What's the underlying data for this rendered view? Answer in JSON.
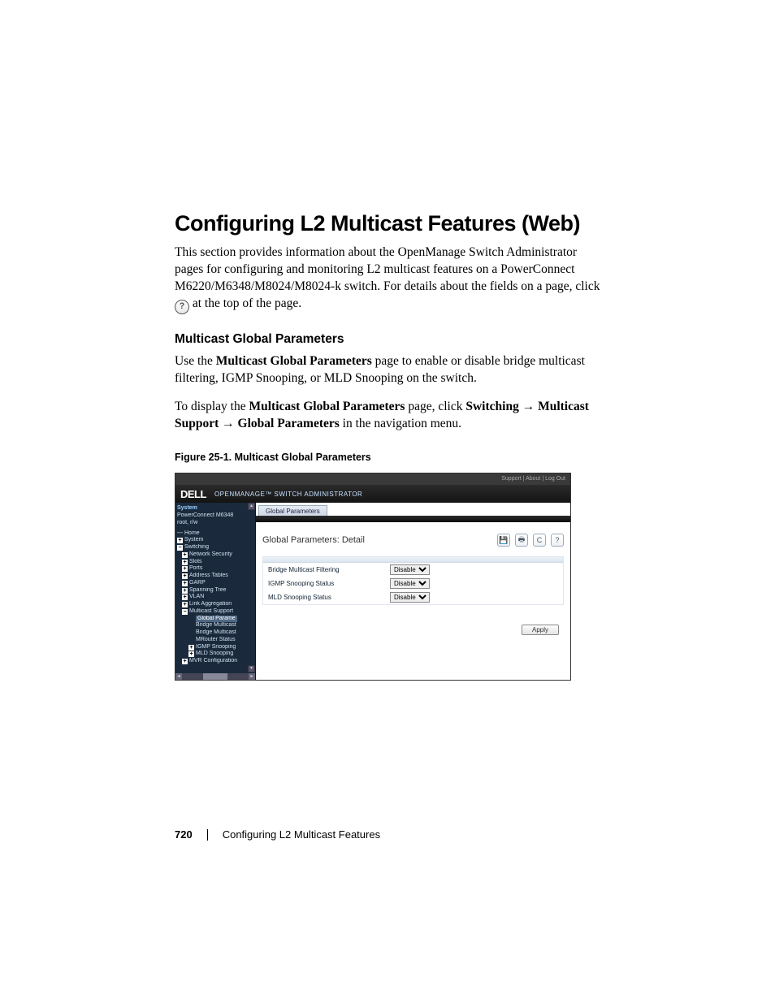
{
  "page": {
    "heading": "Configuring L2 Multicast Features (Web)",
    "intro_a": "This section provides information about the OpenManage Switch Administrator pages for configuring and monitoring L2 multicast features on a PowerConnect M6220/M6348/M8024/M8024-k switch. For details about the fields on a page, click ",
    "intro_b": " at the top of the page.",
    "sub_heading": "Multicast Global Parameters",
    "para2_a": "Use the ",
    "para2_bold": "Multicast Global Parameters",
    "para2_b": " page to enable or disable bridge multicast filtering, IGMP Snooping, or MLD Snooping on the switch.",
    "para3_a": "To display the ",
    "para3_bold1": "Multicast Global Parameters",
    "para3_b": " page, click ",
    "para3_bold2": "Switching",
    "para3_arrow1": " → ",
    "para3_bold3": "Multicast Support",
    "para3_arrow2": " → ",
    "para3_bold4": "Global Parameters",
    "para3_c": " in the navigation menu.",
    "figure_caption": "Figure 25-1.    Multicast Global Parameters",
    "help_glyph": "?"
  },
  "shot": {
    "top_links": "Support  |  About  |  Log Out",
    "brand": "DELL",
    "brand_sub": "OPENMANAGE™ SWITCH ADMINISTRATOR",
    "sidebar": {
      "sys_label": "System",
      "sys_line2": "PowerConnect M6348",
      "sys_line3": "root, r/w",
      "items": [
        {
          "lvl": "l1",
          "exp": "dash",
          "label": "Home"
        },
        {
          "lvl": "l1",
          "exp": "plus",
          "label": "System"
        },
        {
          "lvl": "l1",
          "exp": "minus",
          "label": "Switching"
        },
        {
          "lvl": "l2",
          "exp": "plus",
          "label": "Network Security"
        },
        {
          "lvl": "l2",
          "exp": "plus",
          "label": "Slots"
        },
        {
          "lvl": "l2",
          "exp": "plus",
          "label": "Ports"
        },
        {
          "lvl": "l2",
          "exp": "plus",
          "label": "Address Tables"
        },
        {
          "lvl": "l2",
          "exp": "plus",
          "label": "GARP"
        },
        {
          "lvl": "l2",
          "exp": "plus",
          "label": "Spanning Tree"
        },
        {
          "lvl": "l2",
          "exp": "plus",
          "label": "VLAN"
        },
        {
          "lvl": "l2",
          "exp": "plus",
          "label": "Link Aggregation"
        },
        {
          "lvl": "l2",
          "exp": "minus",
          "label": "Multicast Support"
        },
        {
          "lvl": "l3",
          "exp": "none",
          "label": "Global Parame",
          "active": true
        },
        {
          "lvl": "l3",
          "exp": "none",
          "label": "Bridge Multicast"
        },
        {
          "lvl": "l3",
          "exp": "none",
          "label": "Bridge Multicast"
        },
        {
          "lvl": "l3",
          "exp": "none",
          "label": "MRouter Status"
        },
        {
          "lvl": "l3",
          "exp": "plus",
          "label": "IGMP Snooping"
        },
        {
          "lvl": "l3",
          "exp": "plus",
          "label": "MLD Snooping"
        },
        {
          "lvl": "l2",
          "exp": "plus",
          "label": "MVR Configuration"
        }
      ]
    },
    "tab": "Global Parameters",
    "panel_title": "Global Parameters: Detail",
    "icons": {
      "save": "💾",
      "print": "🖶",
      "refresh": "C",
      "help": "?"
    },
    "params": [
      {
        "label": "Bridge Multicast Filtering",
        "value": "Disable"
      },
      {
        "label": "IGMP Snooping Status",
        "value": "Disable"
      },
      {
        "label": "MLD Snooping Status",
        "value": "Disable"
      }
    ],
    "apply": "Apply"
  },
  "footer": {
    "page_num": "720",
    "chapter": "Configuring L2 Multicast Features"
  }
}
